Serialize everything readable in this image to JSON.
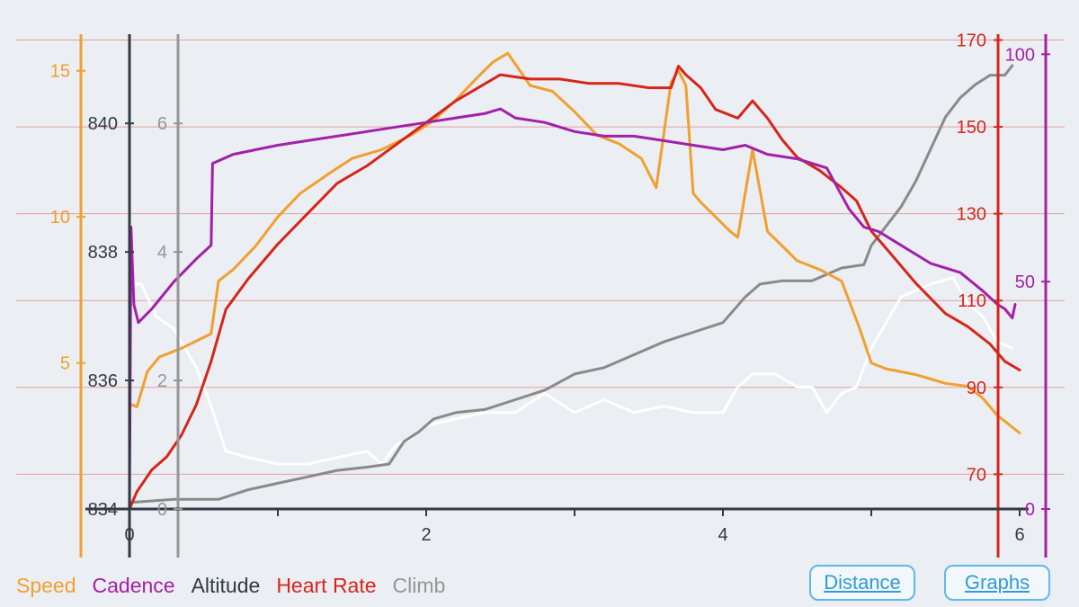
{
  "colors": {
    "speed": "#f0a030",
    "cadence": "#a320a8",
    "altitude": "#333a44",
    "heart_rate": "#d4261c",
    "climb": "#969696",
    "climb_line": "#8a8a8a",
    "white_line": "#ffffff",
    "gridline": "#e3a0a0",
    "button": "#2f9bd8"
  },
  "legend": {
    "speed": "Speed",
    "cadence": "Cadence",
    "altitude": "Altitude",
    "heart_rate": "Heart Rate",
    "climb": "Climb"
  },
  "buttons": {
    "distance": "Distance",
    "graphs": "Graphs"
  },
  "chart_data": {
    "type": "line",
    "x_axis": {
      "range": [
        0,
        6
      ],
      "ticks": [
        0,
        2,
        4,
        6
      ],
      "minor_ticks": [
        1,
        3,
        5
      ]
    },
    "axes": {
      "speed": {
        "range": [
          0,
          16.5
        ],
        "ticks": [
          5,
          10,
          15
        ]
      },
      "altitude": {
        "range": [
          834,
          841.5
        ],
        "ticks": [
          834,
          836,
          838,
          840
        ]
      },
      "climb": {
        "range": [
          0,
          7.5
        ],
        "ticks": [
          0,
          2,
          4,
          6
        ]
      },
      "heart_rate": {
        "range": [
          62,
          173
        ],
        "ticks": [
          70,
          90,
          110,
          130,
          150,
          170
        ]
      },
      "cadence": {
        "range": [
          0,
          106
        ],
        "ticks": [
          0,
          50,
          100
        ]
      }
    },
    "series": [
      {
        "name": "Speed",
        "axis": "speed",
        "x": [
          0,
          0.05,
          0.12,
          0.2,
          0.35,
          0.55,
          0.6,
          0.7,
          0.85,
          1.0,
          1.15,
          1.35,
          1.5,
          1.7,
          1.9,
          2.05,
          2.2,
          2.35,
          2.45,
          2.55,
          2.7,
          2.85,
          3.0,
          3.15,
          3.3,
          3.45,
          3.55,
          3.65,
          3.7,
          3.75,
          3.8,
          3.85,
          3.95,
          4.05,
          4.1,
          4.2,
          4.3,
          4.4,
          4.5,
          4.65,
          4.8,
          4.92,
          5.0,
          5.1,
          5.3,
          5.5,
          5.65,
          5.75,
          5.85,
          5.95,
          6.0
        ],
        "values": [
          3.6,
          3.5,
          4.7,
          5.2,
          5.5,
          6.0,
          7.8,
          8.2,
          9.0,
          10.0,
          10.8,
          11.5,
          12.0,
          12.3,
          12.8,
          13.3,
          14.0,
          14.8,
          15.3,
          15.6,
          14.5,
          14.3,
          13.6,
          12.8,
          12.5,
          12.0,
          11.0,
          14.6,
          15.0,
          14.5,
          10.8,
          10.5,
          10.0,
          9.5,
          9.3,
          12.3,
          9.5,
          9.0,
          8.5,
          8.2,
          7.8,
          6.2,
          5.0,
          4.8,
          4.6,
          4.3,
          4.2,
          3.8,
          3.2,
          2.8,
          2.6
        ]
      },
      {
        "name": "Cadence",
        "axis": "cadence",
        "x": [
          0,
          0.01,
          0.03,
          0.06,
          0.15,
          0.3,
          0.45,
          0.55,
          0.56,
          0.7,
          0.85,
          1.0,
          1.2,
          1.4,
          1.6,
          1.8,
          2.0,
          2.2,
          2.4,
          2.5,
          2.6,
          2.8,
          3.0,
          3.2,
          3.4,
          3.6,
          3.8,
          4.0,
          4.15,
          4.3,
          4.5,
          4.7,
          4.85,
          4.95,
          5.05,
          5.2,
          5.4,
          5.6,
          5.75,
          5.85,
          5.9,
          5.95,
          5.97
        ],
        "values": [
          0,
          62,
          45,
          41,
          44,
          50,
          55,
          58,
          76,
          78,
          79,
          80,
          81,
          82,
          83,
          84,
          85,
          86,
          87,
          88,
          86,
          85,
          83,
          82,
          82,
          81,
          80,
          79,
          80,
          78,
          77,
          75,
          66,
          62,
          61,
          58,
          54,
          52,
          48,
          45,
          44,
          42,
          45
        ]
      },
      {
        "name": "Altitude",
        "axis": "altitude",
        "x": [
          0,
          0.02,
          0.08,
          0.18,
          0.3,
          0.45,
          0.55,
          0.65,
          0.8,
          1.0,
          1.2,
          1.4,
          1.6,
          1.7,
          1.8,
          1.9,
          2.0,
          2.2,
          2.4,
          2.6,
          2.8,
          3.0,
          3.2,
          3.4,
          3.6,
          3.8,
          4.0,
          4.1,
          4.2,
          4.35,
          4.5,
          4.6,
          4.7,
          4.8,
          4.9,
          5.0,
          5.2,
          5.4,
          5.55,
          5.65,
          5.75,
          5.85,
          5.95
        ],
        "values": [
          838.2,
          837.5,
          837.5,
          837.0,
          836.8,
          836.2,
          835.6,
          834.9,
          834.8,
          834.7,
          834.7,
          834.8,
          834.9,
          834.7,
          835.0,
          835.1,
          835.3,
          835.4,
          835.5,
          835.5,
          835.8,
          835.5,
          835.7,
          835.5,
          835.6,
          835.5,
          835.5,
          835.9,
          836.1,
          836.1,
          835.9,
          835.9,
          835.5,
          835.8,
          835.9,
          836.5,
          837.3,
          837.5,
          837.6,
          837.2,
          837.0,
          836.6,
          836.5
        ]
      },
      {
        "name": "Heart Rate",
        "axis": "heart_rate",
        "x": [
          0,
          0.05,
          0.15,
          0.25,
          0.35,
          0.45,
          0.55,
          0.65,
          0.8,
          1.0,
          1.2,
          1.4,
          1.6,
          1.8,
          2.0,
          2.2,
          2.35,
          2.5,
          2.7,
          2.9,
          3.1,
          3.3,
          3.5,
          3.65,
          3.7,
          3.75,
          3.85,
          3.95,
          4.1,
          4.2,
          4.3,
          4.4,
          4.5,
          4.65,
          4.8,
          4.9,
          5.0,
          5.15,
          5.3,
          5.5,
          5.65,
          5.8,
          5.9,
          6.0
        ],
        "values": [
          62,
          66,
          71,
          74,
          79,
          86,
          96,
          108,
          115,
          123,
          130,
          137,
          141,
          146,
          151,
          156,
          159,
          162,
          161,
          161,
          160,
          160,
          159,
          159,
          164,
          162,
          159,
          154,
          152,
          156,
          152,
          147,
          143,
          140,
          136,
          133,
          126,
          120,
          114,
          107,
          104,
          100,
          96,
          94
        ]
      },
      {
        "name": "Climb",
        "axis": "climb",
        "x": [
          0,
          0.3,
          0.6,
          0.8,
          1.0,
          1.2,
          1.4,
          1.6,
          1.75,
          1.85,
          1.95,
          2.05,
          2.2,
          2.4,
          2.6,
          2.8,
          3.0,
          3.2,
          3.4,
          3.6,
          3.8,
          4.0,
          4.15,
          4.25,
          4.4,
          4.6,
          4.8,
          4.95,
          5.0,
          5.1,
          5.2,
          5.3,
          5.4,
          5.5,
          5.6,
          5.7,
          5.8,
          5.9,
          5.95
        ],
        "values": [
          0.1,
          0.15,
          0.15,
          0.3,
          0.4,
          0.5,
          0.6,
          0.65,
          0.7,
          1.05,
          1.2,
          1.4,
          1.5,
          1.55,
          1.7,
          1.85,
          2.1,
          2.2,
          2.4,
          2.6,
          2.75,
          2.9,
          3.3,
          3.5,
          3.55,
          3.55,
          3.75,
          3.8,
          4.1,
          4.4,
          4.7,
          5.1,
          5.6,
          6.1,
          6.4,
          6.6,
          6.75,
          6.75,
          6.9
        ]
      }
    ]
  }
}
